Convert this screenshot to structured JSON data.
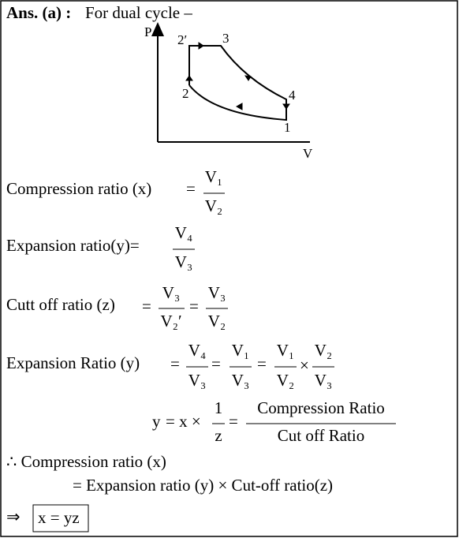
{
  "header": {
    "label": "Ans. (a) :",
    "intro": "For dual cycle –"
  },
  "diagram": {
    "axis_p": "P",
    "axis_v": "V",
    "points": [
      "2′",
      "3",
      "4",
      "1",
      "2"
    ]
  },
  "lines": [
    {
      "lhs": "Compression ratio (x)",
      "parts": [
        "=",
        "V₁",
        "V₂"
      ]
    },
    {
      "lhs": "Expansion ratio(y)=",
      "parts": [
        "V₄",
        "V₃"
      ]
    },
    {
      "lhs": "Cutt off ratio (z)",
      "parts": [
        "=",
        "V₃",
        "V₂′",
        "=",
        "V₃",
        "V₂"
      ]
    },
    {
      "lhs": "Expansion Ratio (y)",
      "parts": [
        "=",
        "V₄",
        "V₃",
        "=",
        "V₁",
        "V₃",
        "=",
        "V₁",
        "V₂",
        "×",
        "V₂",
        "V₃"
      ]
    },
    {
      "lhs": "y",
      "parts": [
        "= x ×",
        "1",
        "z",
        "=",
        "Compression Ratio",
        "Cut off Ratio"
      ]
    }
  ],
  "conclusion": {
    "therefore": "∴ Compression ratio (x)",
    "equals": "= Expansion ratio (y) × Cut-off ratio(z)",
    "implies": "⇒",
    "result": "x = yz"
  }
}
